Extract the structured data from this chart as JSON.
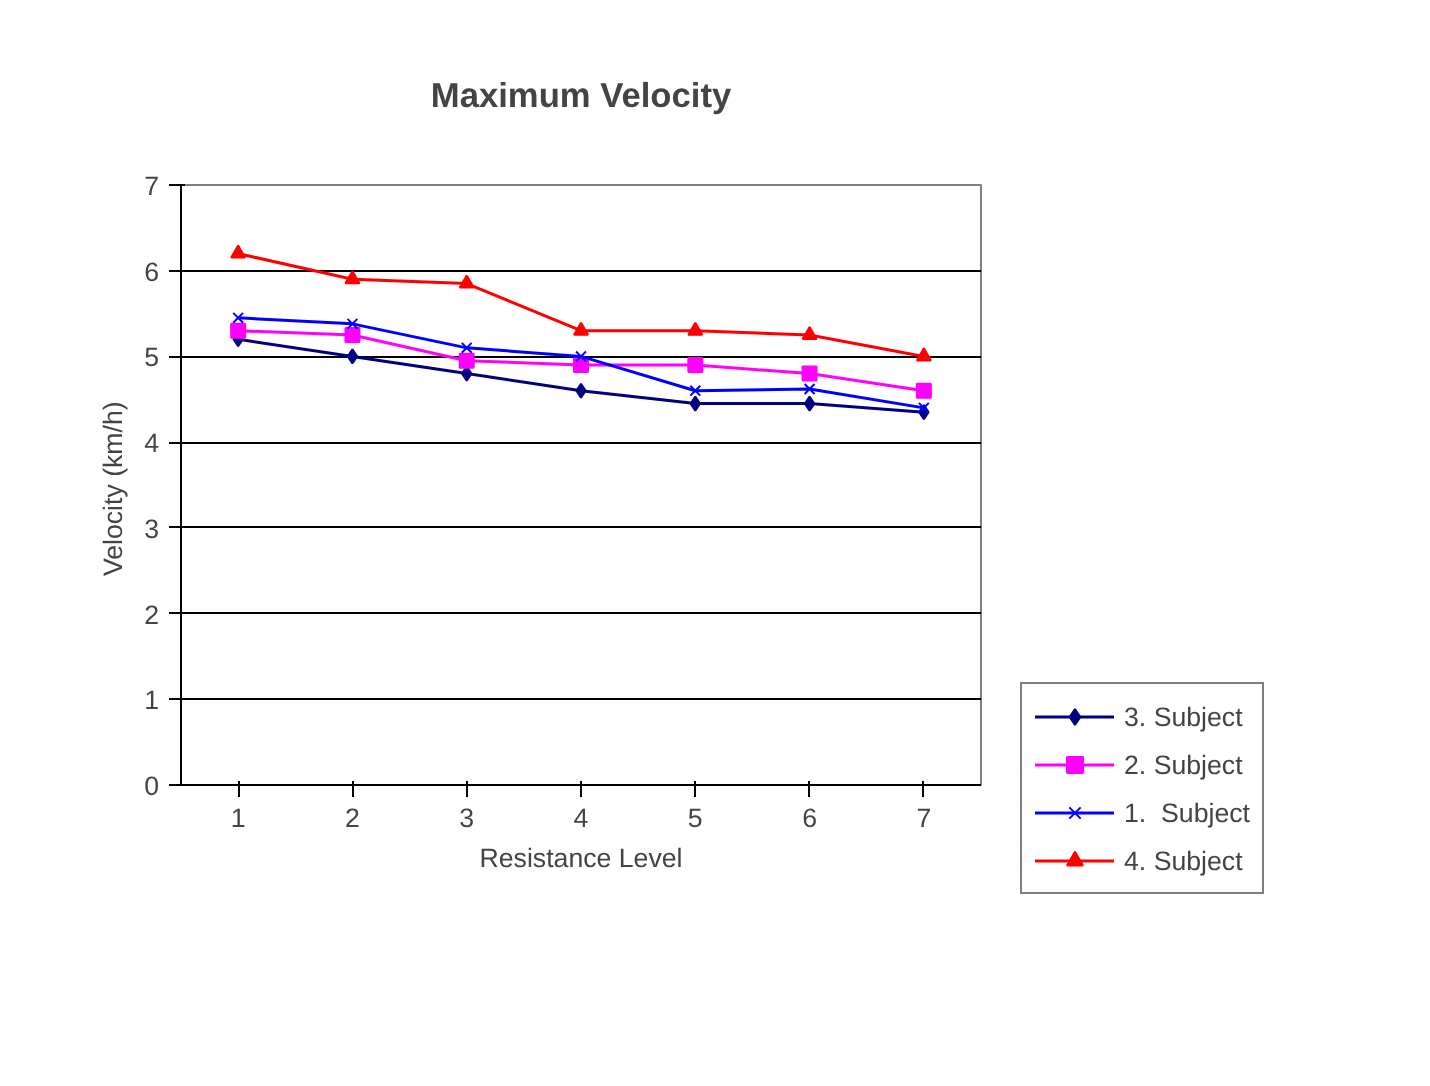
{
  "chart_data": {
    "type": "line",
    "title": "Maximum Velocity",
    "xlabel": "Resistance Level",
    "ylabel": "Velocity  (km/h)",
    "categories": [
      "1",
      "2",
      "3",
      "4",
      "5",
      "6",
      "7"
    ],
    "series": [
      {
        "name": "3. Subject",
        "color": "#000080",
        "marker": "diamond",
        "values": [
          5.2,
          5.0,
          4.8,
          4.6,
          4.45,
          4.45,
          4.35
        ]
      },
      {
        "name": "2. Subject",
        "color": "#ff00ff",
        "marker": "square",
        "values": [
          5.3,
          5.25,
          4.95,
          4.9,
          4.9,
          4.8,
          4.6
        ]
      },
      {
        "name": "1.  Subject",
        "color": "#0000ff",
        "marker": "cross",
        "values": [
          5.45,
          5.38,
          5.1,
          5.0,
          4.6,
          4.62,
          4.4
        ]
      },
      {
        "name": "4. Subject",
        "color": "#ff0000",
        "marker": "triangle",
        "values": [
          6.2,
          5.9,
          5.85,
          5.3,
          5.3,
          5.25,
          5.0
        ]
      }
    ],
    "ylim": [
      0,
      7
    ],
    "yticks": [
      0,
      1,
      2,
      3,
      4,
      5,
      6,
      7
    ],
    "grid": "y",
    "legend": "right",
    "line_style": "solid"
  }
}
